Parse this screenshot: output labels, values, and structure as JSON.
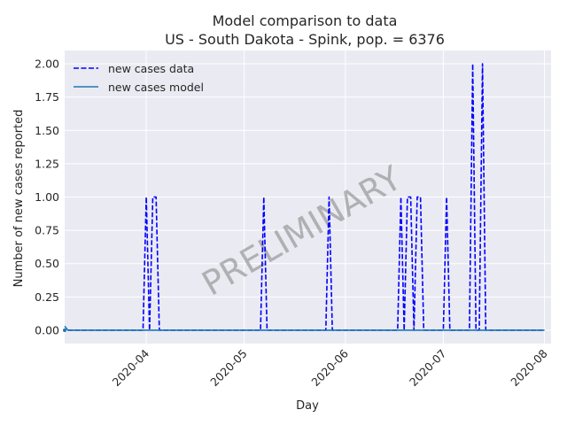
{
  "chart_data": {
    "type": "line",
    "title": "Model comparison to data",
    "subtitle": "US - South Dakota - Spink, pop. = 6376",
    "xlabel": "Day",
    "ylabel": "Number of new cases reported",
    "xlim": [
      "2020-03-07",
      "2020-08-03"
    ],
    "ylim": [
      -0.1,
      2.1
    ],
    "yticks": [
      0.0,
      0.25,
      0.5,
      0.75,
      1.0,
      1.25,
      1.5,
      1.75,
      2.0
    ],
    "ytick_labels": [
      "0.00",
      "0.25",
      "0.50",
      "0.75",
      "1.00",
      "1.25",
      "1.50",
      "1.75",
      "2.00"
    ],
    "xticks": [
      "2020-04-01",
      "2020-05-01",
      "2020-06-01",
      "2020-07-01",
      "2020-08-01"
    ],
    "xtick_labels": [
      "2020-04",
      "2020-05",
      "2020-06",
      "2020-07",
      "2020-08"
    ],
    "grid": true,
    "legend_position": "top-left",
    "watermark": "PRELIMINARY",
    "series": [
      {
        "name": "new cases data",
        "style": "dashed",
        "color": "#0000ff",
        "x": [
          "2020-03-31",
          "2020-04-01",
          "2020-04-02",
          "2020-04-03",
          "2020-04-04",
          "2020-04-05",
          "2020-05-06",
          "2020-05-07",
          "2020-05-08",
          "2020-05-26",
          "2020-05-27",
          "2020-05-28",
          "2020-06-17",
          "2020-06-18",
          "2020-06-19",
          "2020-06-20",
          "2020-06-21",
          "2020-06-22",
          "2020-06-23",
          "2020-06-24",
          "2020-06-25",
          "2020-07-01",
          "2020-07-02",
          "2020-07-03",
          "2020-07-09",
          "2020-07-10",
          "2020-07-11",
          "2020-07-12",
          "2020-07-13",
          "2020-07-14",
          "2020-07-15"
        ],
        "values": [
          0,
          1,
          0,
          1,
          1,
          0,
          0,
          1,
          0,
          0,
          1,
          0,
          0,
          1,
          0,
          1,
          1,
          0,
          1,
          1,
          0,
          0,
          1,
          0,
          0,
          2,
          0,
          0,
          2,
          0,
          0
        ]
      },
      {
        "name": "new cases model",
        "style": "solid",
        "color": "#1f77b4",
        "x": [
          "2020-03-07",
          "2020-03-08",
          "2020-08-01"
        ],
        "values": [
          0.03,
          0,
          0
        ]
      }
    ]
  }
}
